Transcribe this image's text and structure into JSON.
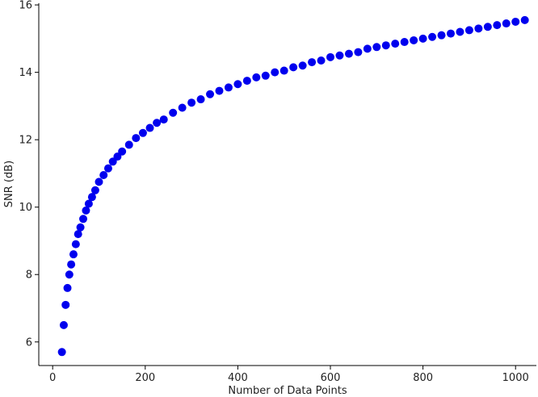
{
  "chart_data": {
    "type": "scatter",
    "title": "",
    "xlabel": "Number of Data Points",
    "ylabel": "SNR (dB)",
    "xlim": [
      -30,
      1045
    ],
    "ylim": [
      5.3,
      16.05
    ],
    "xticks": [
      0,
      200,
      400,
      600,
      800,
      1000
    ],
    "yticks": [
      6,
      8,
      10,
      12,
      14,
      16
    ],
    "grid": false,
    "legend": "none",
    "marker_color": "#0000ee",
    "marker": "circle",
    "series": [
      {
        "x": [
          20,
          24,
          28,
          32,
          36,
          40,
          45,
          50,
          55,
          60,
          66,
          72,
          78,
          85,
          92,
          100,
          110,
          120,
          130,
          140,
          150,
          165,
          180,
          195,
          210,
          225,
          240,
          260,
          280,
          300,
          320,
          340,
          360,
          380,
          400,
          420,
          440,
          460,
          480,
          500,
          520,
          540,
          560,
          580,
          600,
          620,
          640,
          660,
          680,
          700,
          720,
          740,
          760,
          780,
          800,
          820,
          840,
          860,
          880,
          900,
          920,
          940,
          960,
          980,
          1000,
          1020
        ],
        "y": [
          5.7,
          6.5,
          7.1,
          7.6,
          8.0,
          8.3,
          8.6,
          8.9,
          9.2,
          9.4,
          9.65,
          9.9,
          10.1,
          10.3,
          10.5,
          10.75,
          10.95,
          11.15,
          11.35,
          11.5,
          11.65,
          11.85,
          12.05,
          12.2,
          12.35,
          12.5,
          12.6,
          12.8,
          12.95,
          13.1,
          13.2,
          13.35,
          13.45,
          13.55,
          13.65,
          13.75,
          13.85,
          13.9,
          14.0,
          14.05,
          14.15,
          14.2,
          14.3,
          14.35,
          14.45,
          14.5,
          14.55,
          14.6,
          14.7,
          14.75,
          14.8,
          14.85,
          14.9,
          14.95,
          15.0,
          15.05,
          15.1,
          15.15,
          15.2,
          15.25,
          15.3,
          15.35,
          15.4,
          15.45,
          15.5,
          15.55
        ]
      }
    ]
  }
}
